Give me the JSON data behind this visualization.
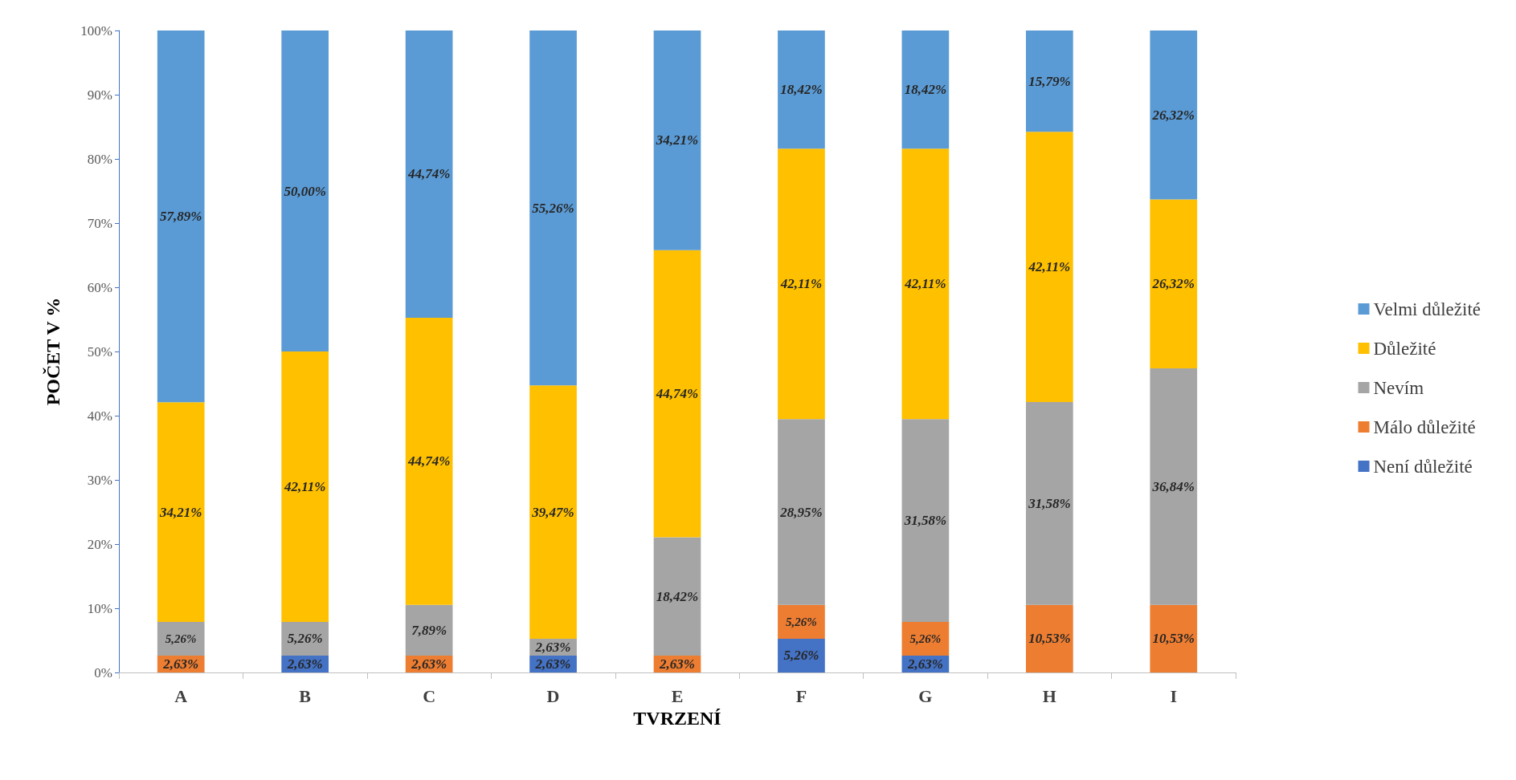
{
  "chart_data": {
    "type": "bar",
    "stacked": true,
    "xlabel": "TVRZENÍ",
    "ylabel": "POČET V %",
    "categories": [
      "A",
      "B",
      "C",
      "D",
      "E",
      "F",
      "G",
      "H",
      "I"
    ],
    "ylim": [
      0,
      100
    ],
    "yticks": [
      {
        "value": 0,
        "label": "0%"
      },
      {
        "value": 10,
        "label": "10%"
      },
      {
        "value": 20,
        "label": "20%"
      },
      {
        "value": 30,
        "label": "30%"
      },
      {
        "value": 40,
        "label": "40%"
      },
      {
        "value": 50,
        "label": "50%"
      },
      {
        "value": 60,
        "label": "60%"
      },
      {
        "value": 70,
        "label": "70%"
      },
      {
        "value": 80,
        "label": "80%"
      },
      {
        "value": 90,
        "label": "90%"
      },
      {
        "value": 100,
        "label": "100%"
      }
    ],
    "grid": false,
    "legend": "right",
    "series": [
      {
        "name": "Není důležité",
        "color": "#4472c4",
        "values": [
          null,
          2.63,
          null,
          2.63,
          null,
          5.26,
          2.63,
          null,
          null
        ],
        "value_labels": [
          null,
          "2,63%",
          null,
          "2,63%",
          null,
          "5,26%",
          "2,63%",
          null,
          null
        ]
      },
      {
        "name": "Málo důležité",
        "color": "#ed7d31",
        "values": [
          2.63,
          null,
          2.63,
          null,
          2.63,
          5.26,
          5.26,
          10.53,
          10.53
        ],
        "value_labels": [
          "2,63%",
          null,
          "2,63%",
          null,
          "2,63%",
          "5,26%",
          "5,26%",
          "10,53%",
          "10,53%"
        ]
      },
      {
        "name": "Nevím",
        "color": "#a5a5a5",
        "values": [
          5.26,
          5.26,
          7.89,
          2.63,
          18.42,
          28.95,
          31.58,
          31.58,
          36.84
        ],
        "value_labels": [
          "5,26%",
          "5,26%",
          "7,89%",
          "2,63%",
          "18,42%",
          "28,95%",
          "31,58%",
          "31,58%",
          "36,84%"
        ]
      },
      {
        "name": "Důležité",
        "color": "#ffc000",
        "values": [
          34.21,
          42.11,
          44.74,
          39.47,
          44.74,
          42.11,
          42.11,
          42.11,
          26.32
        ],
        "value_labels": [
          "34,21%",
          "42,11%",
          "44,74%",
          "39,47%",
          "44,74%",
          "42,11%",
          "42,11%",
          "42,11%",
          "26,32%"
        ]
      },
      {
        "name": "Velmi důležité",
        "color": "#5b9bd5",
        "values": [
          57.89,
          50.0,
          44.74,
          55.26,
          34.21,
          18.42,
          18.42,
          15.79,
          26.32
        ],
        "value_labels": [
          "57,89%",
          "50,00%",
          "44,74%",
          "55,26%",
          "34,21%",
          "18,42%",
          "18,42%",
          "15,79%",
          "26,32%"
        ]
      }
    ]
  }
}
